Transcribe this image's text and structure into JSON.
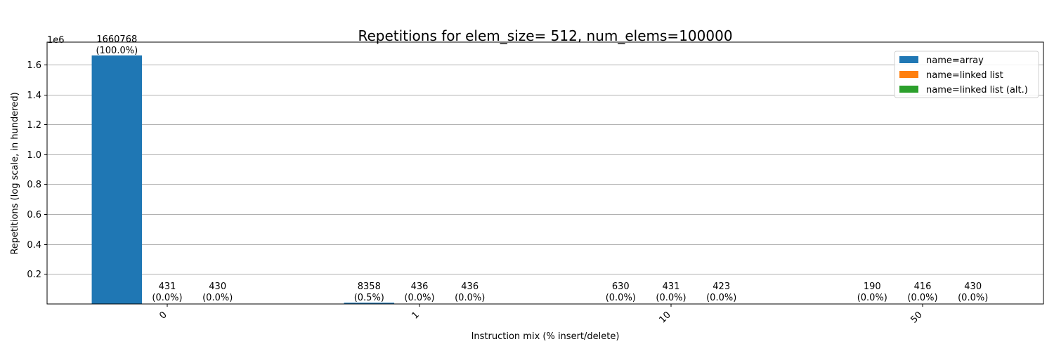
{
  "chart_data": {
    "type": "bar",
    "title": "Repetitions for elem_size= 512, num_elems=100000",
    "xlabel": "Instruction mix (% insert/delete)",
    "ylabel": "Repetitions (log scale, in hundered)",
    "offset_text": "1e6",
    "categories": [
      "0",
      "1",
      "10",
      "50"
    ],
    "ylim": [
      0,
      1750000
    ],
    "yticks": [
      200000,
      400000,
      600000,
      800000,
      1000000,
      1200000,
      1400000,
      1600000
    ],
    "ytick_labels": [
      "0.2",
      "0.4",
      "0.6",
      "0.8",
      "1.0",
      "1.2",
      "1.4",
      "1.6"
    ],
    "grid": "horizontal",
    "legend_position": "top-right",
    "series": [
      {
        "name": "name=array",
        "color": "#1f77b4",
        "values": [
          1660768,
          8358,
          630,
          190
        ],
        "labels": [
          [
            "1660768",
            "(100.0%)"
          ],
          [
            "8358",
            "(0.5%)"
          ],
          [
            "630",
            "(0.0%)"
          ],
          [
            "190",
            "(0.0%)"
          ]
        ]
      },
      {
        "name": "name=linked list",
        "color": "#ff7f0e",
        "values": [
          431,
          436,
          431,
          416
        ],
        "labels": [
          [
            "431",
            "(0.0%)"
          ],
          [
            "436",
            "(0.0%)"
          ],
          [
            "431",
            "(0.0%)"
          ],
          [
            "416",
            "(0.0%)"
          ]
        ]
      },
      {
        "name": "name=linked list (alt.)",
        "color": "#2ca02c",
        "values": [
          430,
          436,
          423,
          430
        ],
        "labels": [
          [
            "430",
            "(0.0%)"
          ],
          [
            "436",
            "(0.0%)"
          ],
          [
            "423",
            "(0.0%)"
          ],
          [
            "430",
            "(0.0%)"
          ]
        ]
      }
    ]
  }
}
